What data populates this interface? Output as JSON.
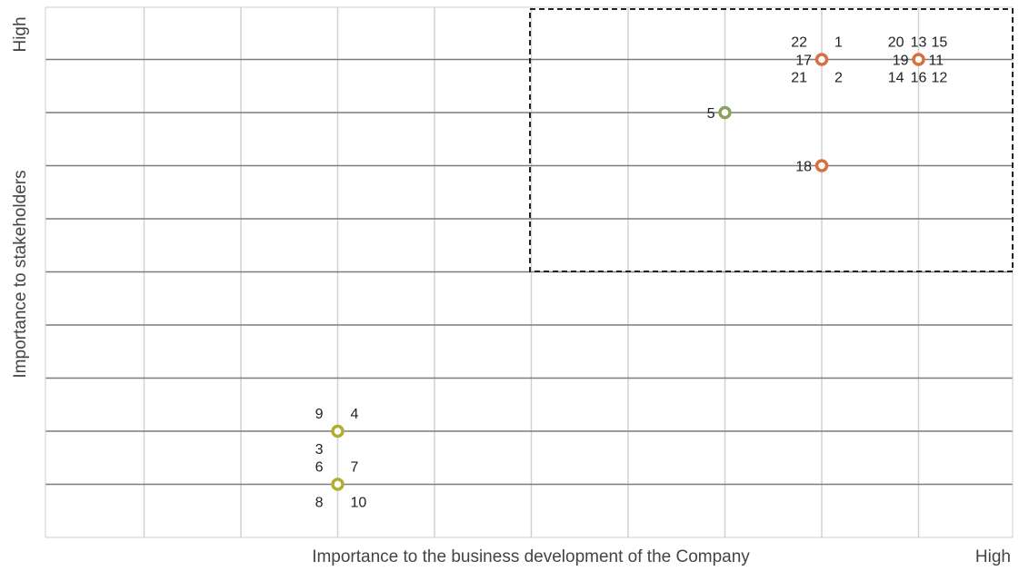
{
  "chart_data": {
    "type": "scatter",
    "title": "",
    "xlabel": "Importance to the business development of the Company",
    "ylabel": "Importance to stakeholders",
    "x_high_label": "High",
    "y_high_label": "High",
    "xlim": [
      0,
      10
    ],
    "ylim": [
      0,
      10
    ],
    "grid": true,
    "highlight_region": {
      "x": [
        5,
        10
      ],
      "y": [
        5,
        10
      ],
      "style": "dashed"
    },
    "colors": {
      "orange": "#d9703f",
      "green": "#8aa35b",
      "olive": "#b2ad2e"
    },
    "points": [
      {
        "x": 8,
        "y": 9,
        "color": "orange",
        "labels": [
          {
            "text": "22",
            "pos": "tl"
          },
          {
            "text": "1",
            "pos": "tr"
          },
          {
            "text": "17",
            "pos": "l"
          },
          {
            "text": "21",
            "pos": "bl"
          },
          {
            "text": "2",
            "pos": "br"
          }
        ]
      },
      {
        "x": 9,
        "y": 9,
        "color": "orange",
        "labels": [
          {
            "text": "20",
            "pos": "tl"
          },
          {
            "text": "13",
            "pos": "t"
          },
          {
            "text": "15",
            "pos": "tr"
          },
          {
            "text": "19",
            "pos": "l"
          },
          {
            "text": "11",
            "pos": "r"
          },
          {
            "text": "14",
            "pos": "bl"
          },
          {
            "text": "16",
            "pos": "b"
          },
          {
            "text": "12",
            "pos": "br"
          }
        ]
      },
      {
        "x": 7,
        "y": 8,
        "color": "green",
        "labels": [
          {
            "text": "5",
            "pos": "l"
          }
        ]
      },
      {
        "x": 8,
        "y": 7,
        "color": "orange",
        "labels": [
          {
            "text": "18",
            "pos": "l"
          }
        ]
      },
      {
        "x": 3,
        "y": 2,
        "color": "olive",
        "labels": [
          {
            "text": "9",
            "pos": "tl"
          },
          {
            "text": "4",
            "pos": "tr"
          },
          {
            "text": "3",
            "pos": "bl"
          }
        ]
      },
      {
        "x": 3,
        "y": 1,
        "color": "olive",
        "labels": [
          {
            "text": "6",
            "pos": "tl"
          },
          {
            "text": "7",
            "pos": "tr"
          },
          {
            "text": "8",
            "pos": "bl"
          },
          {
            "text": "10",
            "pos": "br"
          }
        ]
      }
    ]
  }
}
